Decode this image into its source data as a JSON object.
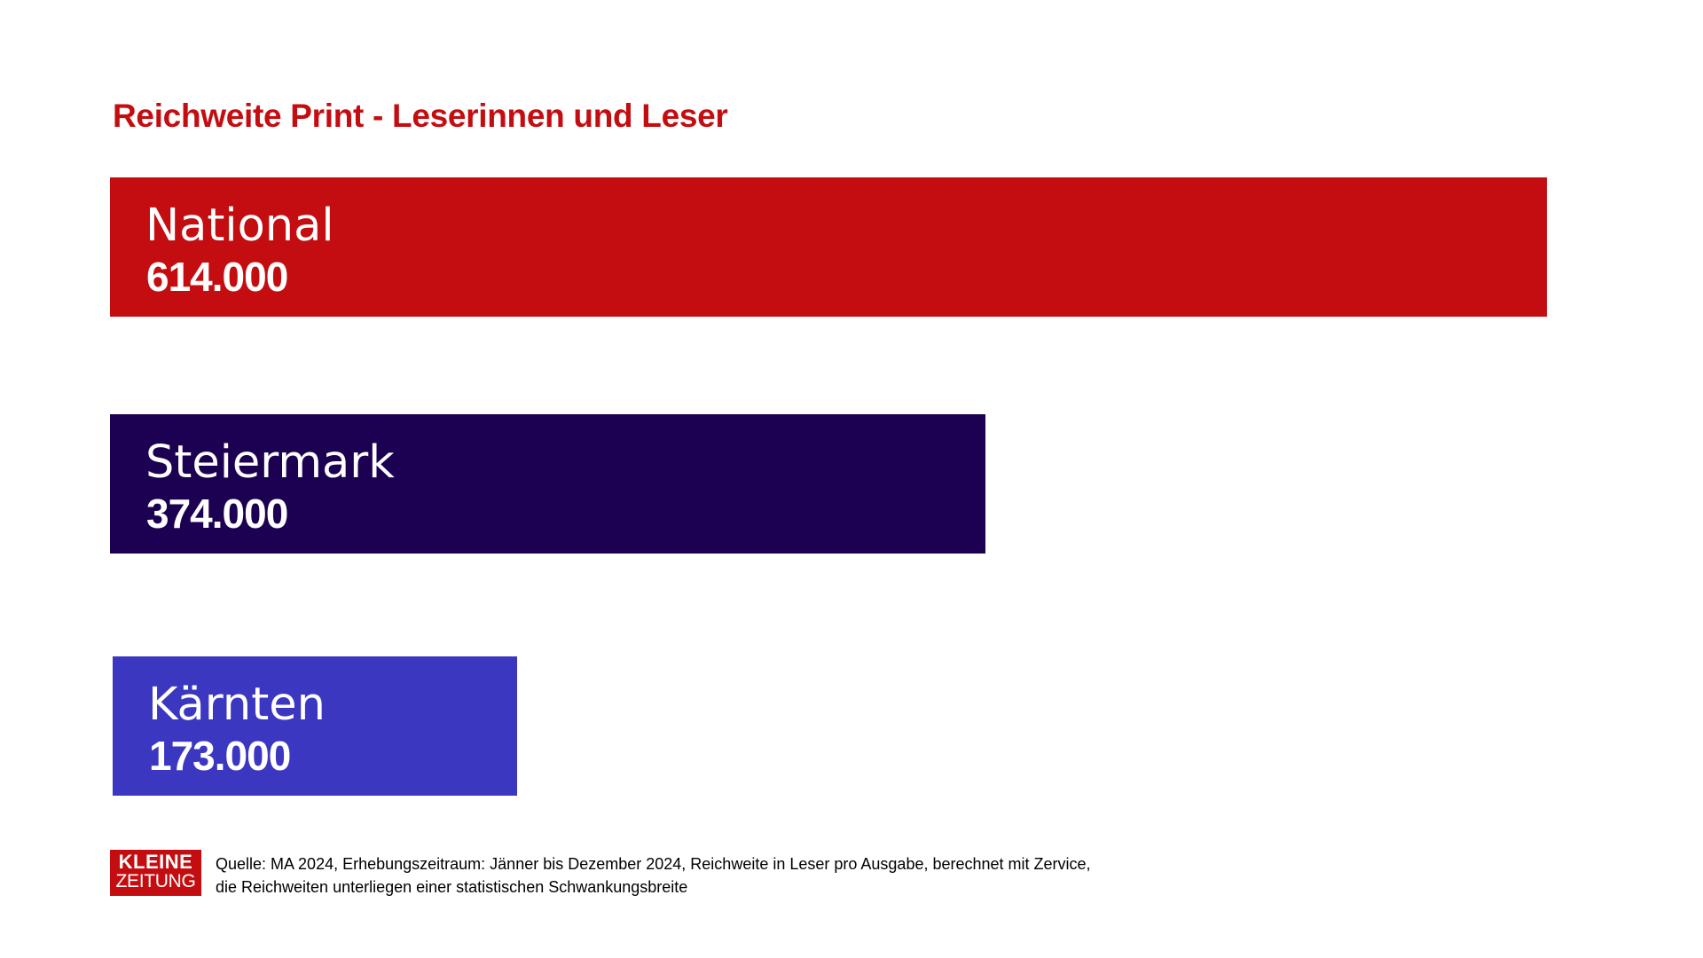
{
  "colors": {
    "title": "#c40d10",
    "logo_bg": "#c40d10",
    "text_on_bar": "#ffffff"
  },
  "chart_data": {
    "type": "bar",
    "orientation": "horizontal",
    "title": "Reichweite Print - Leserinnen und Leser",
    "categories": [
      "National",
      "Steiermark",
      "Kärnten"
    ],
    "values": [
      614000,
      374000,
      173000
    ],
    "value_labels": [
      "614.000",
      "374.000",
      "173.000"
    ],
    "bar_colors": [
      "#c40d10",
      "#1c0052",
      "#3c37c0"
    ],
    "grid": false,
    "legend": "none"
  },
  "footer": {
    "logo_line1": "KLEINE",
    "logo_line2": "ZEITUNG",
    "source_line1": "Quelle: MA 2024, Erhebungszeitraum: Jänner bis Dezember 2024, Reichweite in Leser pro Ausgabe, berechnet mit Zervice,",
    "source_line2": "die Reichweiten unterliegen einer statistischen Schwankungsbreite"
  }
}
